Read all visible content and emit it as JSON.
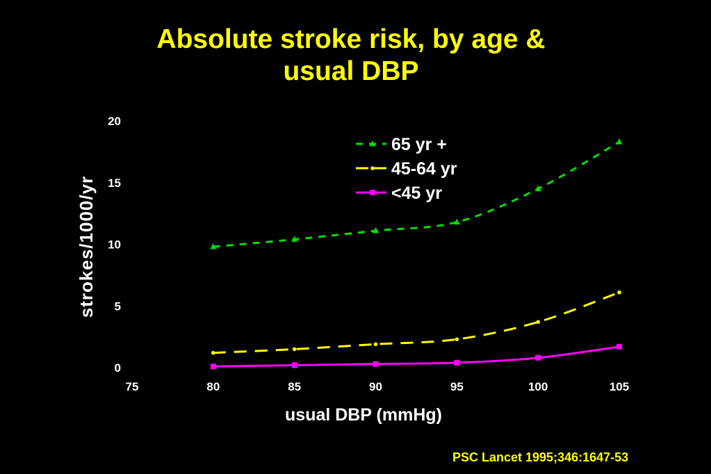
{
  "chart_data": {
    "type": "line",
    "title_lines": [
      "Absolute stroke risk, by age &",
      "usual DBP"
    ],
    "xlabel": "usual DBP (mmHg)",
    "ylabel": "strokes/1000/yr",
    "xlim": [
      75,
      105
    ],
    "ylim": [
      0,
      20
    ],
    "x_ticks": [
      "75",
      "80",
      "85",
      "90",
      "95",
      "100",
      "105"
    ],
    "y_ticks": [
      "0",
      "5",
      "10",
      "15",
      "20"
    ],
    "x": [
      80,
      85,
      90,
      95,
      100,
      105
    ],
    "legend_position": "top-center",
    "grid": false,
    "series": [
      {
        "name": "65 yr +",
        "color": "#00e000",
        "marker": "triangle",
        "dash": "dashed",
        "values": [
          9.8,
          10.4,
          11.1,
          11.8,
          14.5,
          18.3
        ]
      },
      {
        "name": "45-64 yr",
        "color": "#ffff00",
        "marker": "dot",
        "dash": "long-dash",
        "values": [
          1.2,
          1.5,
          1.9,
          2.3,
          3.7,
          6.1
        ]
      },
      {
        "name": "<45 yr",
        "color": "#ff00ff",
        "marker": "square",
        "dash": "solid",
        "values": [
          0.1,
          0.2,
          0.3,
          0.4,
          0.8,
          1.7
        ]
      }
    ]
  },
  "citation": "PSC Lancet 1995;346:1647-53"
}
